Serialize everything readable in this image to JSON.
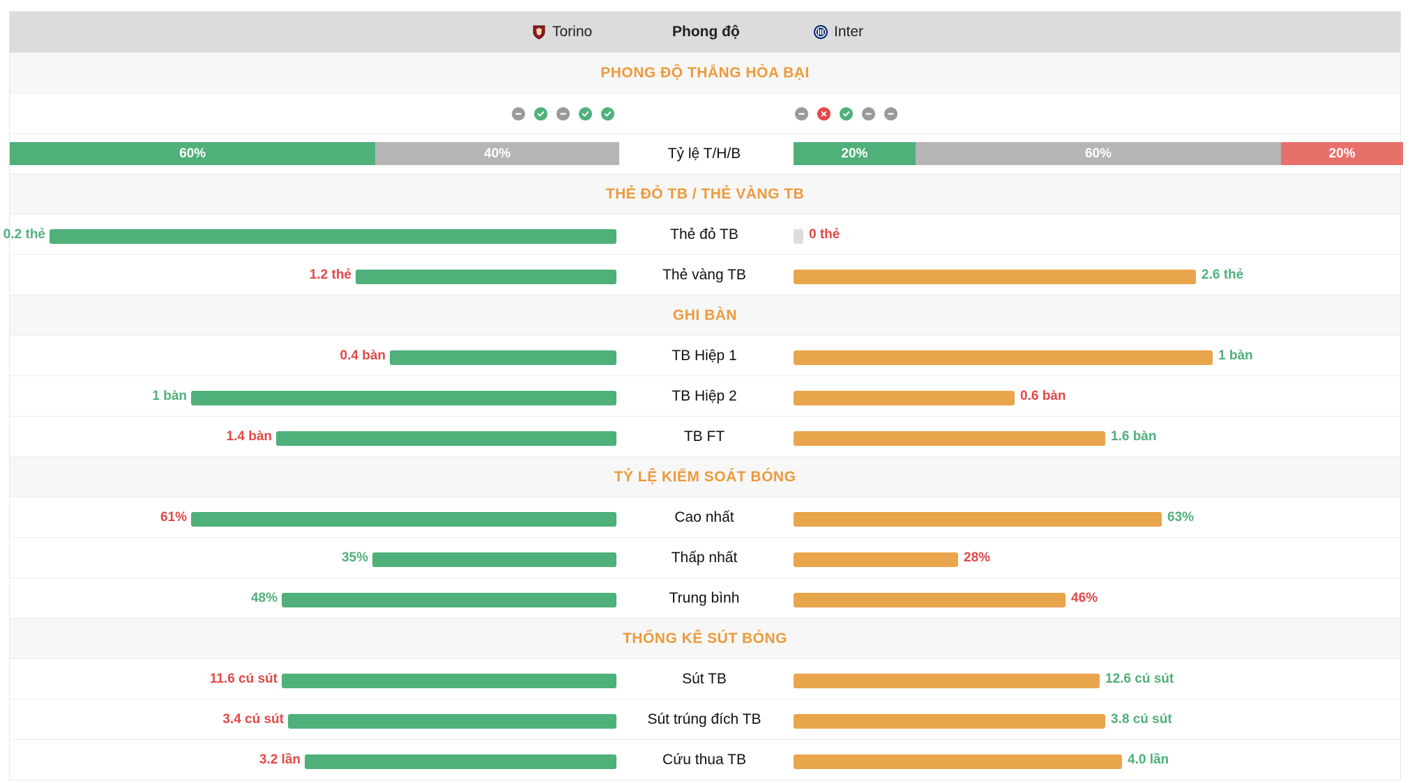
{
  "header": {
    "home_team": "Torino",
    "title": "Phong độ",
    "away_team": "Inter"
  },
  "colors": {
    "win": "#4fb07a",
    "draw": "#9a9a9a",
    "loss": "#e34848",
    "home_bar": "#4fb07a",
    "away_bar": "#e9a54b",
    "section_title": "#ec9a3c"
  },
  "sections": {
    "form": "PHONG ĐỘ THẮNG HÒA BẠI",
    "cards": "THẺ ĐỎ TB / THẺ VÀNG TB",
    "goals": "GHI BÀN",
    "possession": "TỶ LỆ KIỂM SOÁT BÓNG",
    "shots": "THỐNG KÊ SÚT BÓNG"
  },
  "form": {
    "home": [
      "draw",
      "win",
      "draw",
      "win",
      "win"
    ],
    "away": [
      "draw",
      "loss",
      "win",
      "draw",
      "draw"
    ]
  },
  "rate": {
    "label": "Tỷ lệ T/H/B",
    "home": [
      {
        "kind": "win",
        "pct": 60,
        "label": "60%"
      },
      {
        "kind": "draw",
        "pct": 40,
        "label": "40%"
      }
    ],
    "away": [
      {
        "kind": "win",
        "pct": 20,
        "label": "20%"
      },
      {
        "kind": "draw",
        "pct": 60,
        "label": "60%"
      },
      {
        "kind": "loss",
        "pct": 20,
        "label": "20%"
      }
    ]
  },
  "stats": {
    "red_cards": {
      "label": "Thẻ đỏ TB",
      "home": "0.2 thẻ",
      "away": "0 thẻ",
      "home_color": "green",
      "away_color": "red",
      "home_frac": 1.0,
      "away_frac": 0
    },
    "yellow_cards": {
      "label": "Thẻ vàng TB",
      "home": "1.2 thẻ",
      "away": "2.6 thẻ",
      "home_color": "red",
      "away_color": "green",
      "home_frac": 0.46,
      "away_frac": 0.71
    },
    "goals_h1": {
      "label": "TB Hiệp 1",
      "home": "0.4 bàn",
      "away": "1 bàn",
      "home_color": "red",
      "away_color": "green",
      "home_frac": 0.4,
      "away_frac": 0.74
    },
    "goals_h2": {
      "label": "TB Hiệp 2",
      "home": "1 bàn",
      "away": "0.6 bàn",
      "home_color": "green",
      "away_color": "red",
      "home_frac": 0.75,
      "away_frac": 0.39
    },
    "goals_ft": {
      "label": "TB FT",
      "home": "1.4 bàn",
      "away": "1.6 bàn",
      "home_color": "red",
      "away_color": "green",
      "home_frac": 0.6,
      "away_frac": 0.55
    },
    "poss_max": {
      "label": "Cao nhất",
      "home": "61%",
      "away": "63%",
      "home_color": "red",
      "away_color": "green",
      "home_frac": 0.75,
      "away_frac": 0.65
    },
    "poss_min": {
      "label": "Thấp nhất",
      "home": "35%",
      "away": "28%",
      "home_color": "green",
      "away_color": "red",
      "home_frac": 0.43,
      "away_frac": 0.29
    },
    "poss_avg": {
      "label": "Trung bình",
      "home": "48%",
      "away": "46%",
      "home_color": "green",
      "away_color": "red",
      "home_frac": 0.59,
      "away_frac": 0.48
    },
    "shots_avg": {
      "label": "Sút TB",
      "home": "11.6 cú sút",
      "away": "12.6 cú sút",
      "home_color": "red",
      "away_color": "green",
      "home_frac": 0.59,
      "away_frac": 0.54
    },
    "shots_on": {
      "label": "Sút trúng đích TB",
      "home": "3.4 cú sút",
      "away": "3.8 cú sút",
      "home_color": "red",
      "away_color": "green",
      "home_frac": 0.58,
      "away_frac": 0.55
    },
    "saves": {
      "label": "Cứu thua TB",
      "home": "3.2 lần",
      "away": "4.0 lần",
      "home_color": "red",
      "away_color": "green",
      "home_frac": 0.55,
      "away_frac": 0.58
    }
  }
}
